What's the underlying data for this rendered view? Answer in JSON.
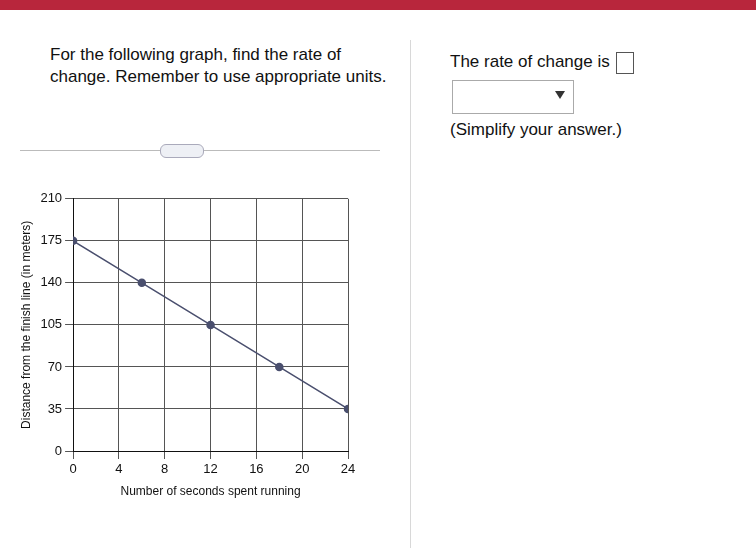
{
  "question": "For the following graph, find the rate of change. Remember to use appropriate units.",
  "answer_prompt": "The rate of change is",
  "answer_hint": "(Simplify your answer.)",
  "chart_data": {
    "type": "line",
    "x_label": "Number of seconds spent running",
    "y_label": "Distance from the finish line (in meters)",
    "x": [
      0,
      6,
      12,
      18,
      24
    ],
    "values": [
      175,
      140,
      105,
      70,
      35
    ],
    "color": "#4a4f6e",
    "marker": "circle",
    "line_style": "solid",
    "xlim": [
      0,
      24
    ],
    "xticks": [
      0,
      4,
      8,
      12,
      16,
      20,
      24
    ],
    "ylim": [
      0,
      210
    ],
    "yticks": [
      0,
      35,
      70,
      105,
      140,
      175,
      210
    ],
    "grid": true
  }
}
